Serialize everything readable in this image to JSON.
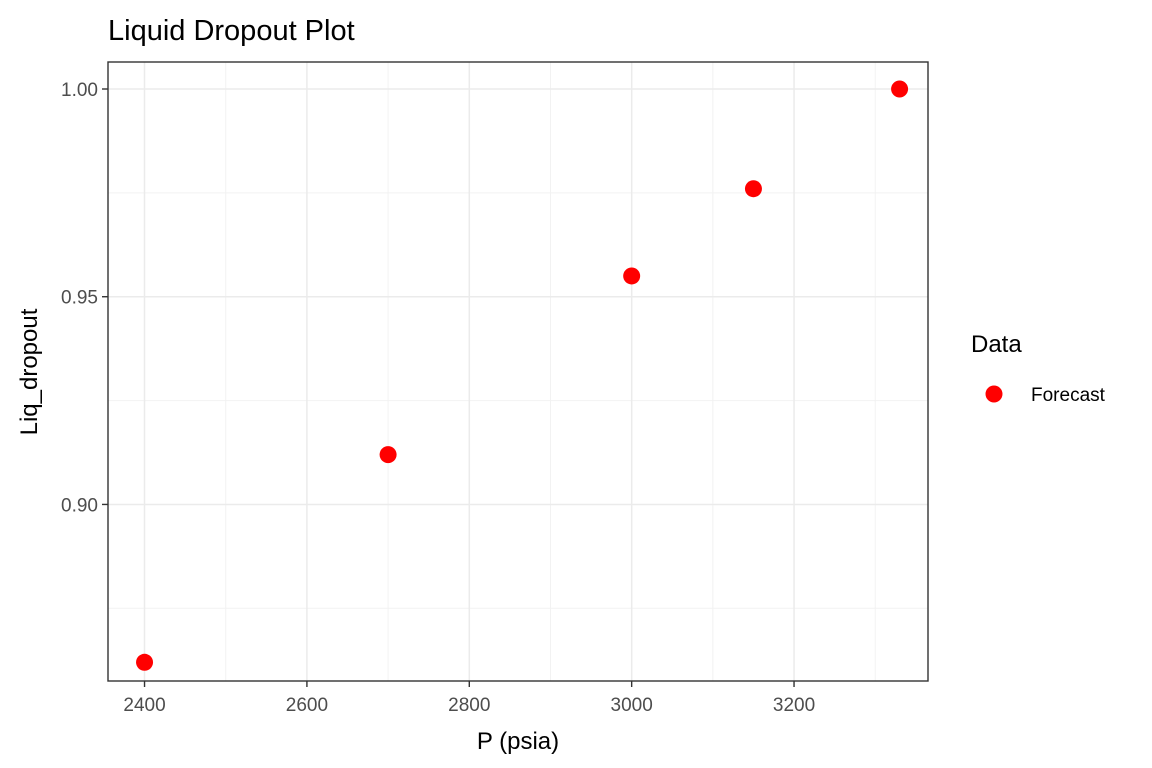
{
  "chart_data": {
    "type": "scatter",
    "title": "Liquid Dropout Plot",
    "xlabel": "P (psia)",
    "ylabel": "Liq_dropout",
    "xlim": [
      2355,
      3365
    ],
    "ylim": [
      0.8575,
      1.0065
    ],
    "x_ticks": [
      2400,
      2600,
      2800,
      3000,
      3200
    ],
    "x_tick_labels": [
      "2400",
      "2600",
      "2800",
      "3000",
      "3200"
    ],
    "x_minor_ticks": [
      2500,
      2700,
      2900,
      3100,
      3300
    ],
    "y_ticks": [
      0.9,
      0.95,
      1.0
    ],
    "y_tick_labels": [
      "0.90",
      "0.95",
      "1.00"
    ],
    "y_minor_ticks": [
      0.875,
      0.925,
      0.975
    ],
    "grid": true,
    "legend": {
      "title": "Data",
      "placement": "right",
      "entries": [
        {
          "label": "Forecast",
          "color": "#ff0000"
        }
      ]
    },
    "series": [
      {
        "name": "Forecast",
        "color": "#ff0000",
        "x": [
          2400,
          2700,
          3000,
          3150,
          3330
        ],
        "y": [
          0.862,
          0.912,
          0.955,
          0.976,
          1.0
        ]
      }
    ]
  }
}
